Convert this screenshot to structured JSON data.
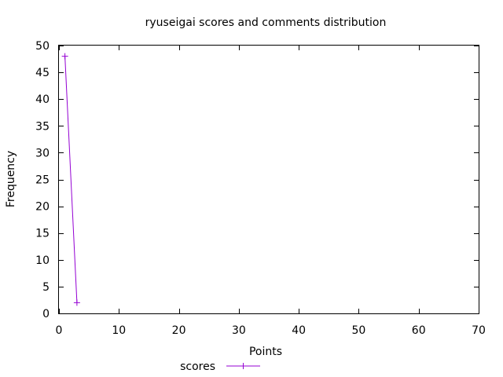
{
  "chart_data": {
    "type": "line",
    "title": "ryuseigai scores and comments distribution",
    "xlabel": "Points",
    "ylabel": "Frequency",
    "xlim": [
      0,
      70
    ],
    "ylim": [
      0,
      50
    ],
    "xticks": [
      0,
      10,
      20,
      30,
      40,
      50,
      60,
      70
    ],
    "yticks": [
      0,
      5,
      10,
      15,
      20,
      25,
      30,
      35,
      40,
      45,
      50
    ],
    "grid": false,
    "legend_position": "bottom-center",
    "series": [
      {
        "name": "scores",
        "color": "#9400d3",
        "marker": "plus",
        "x": [
          1,
          3
        ],
        "y": [
          48,
          2
        ]
      }
    ]
  }
}
